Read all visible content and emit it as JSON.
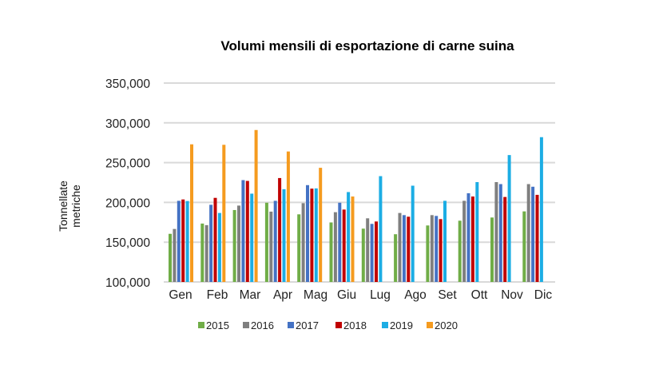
{
  "chart_data": {
    "type": "bar",
    "title": "Volumi mensili di esportazione di carne suina",
    "xlabel": "",
    "ylabel": [
      "Tonnellate",
      "metriche"
    ],
    "ylim": [
      100000,
      350000
    ],
    "yticks": [
      "100,000",
      "150,000",
      "200,000",
      "250,000",
      "300,000",
      "350,000"
    ],
    "ytick_values": [
      100000,
      150000,
      200000,
      250000,
      300000,
      350000
    ],
    "grid": true,
    "legend_position": "bottom",
    "categories": [
      "Gen",
      "Feb",
      "Mar",
      "Apr",
      "Mag",
      "Giu",
      "Lug",
      "Ago",
      "Set",
      "Ott",
      "Nov",
      "Dic"
    ],
    "series": [
      {
        "name": "2015",
        "color": "#70ad47",
        "values": [
          160500,
          173400,
          190400,
          199600,
          185000,
          174800,
          167000,
          160000,
          171000,
          177000,
          181000,
          188700
        ]
      },
      {
        "name": "2016",
        "color": "#7f7f7f",
        "values": [
          166600,
          171400,
          196000,
          188400,
          199000,
          187700,
          180000,
          186700,
          184000,
          202000,
          225500,
          223000
        ]
      },
      {
        "name": "2017",
        "color": "#4472c4",
        "values": [
          202000,
          197000,
          228000,
          202000,
          221700,
          199600,
          173000,
          184000,
          183000,
          211500,
          223000,
          219700
        ]
      },
      {
        "name": "2018",
        "color": "#c00000",
        "values": [
          203700,
          205700,
          227000,
          230600,
          217300,
          191000,
          176000,
          182000,
          179000,
          207400,
          206800,
          209500
        ]
      },
      {
        "name": "2019",
        "color": "#1cade4",
        "values": [
          201700,
          186700,
          211000,
          216600,
          217600,
          213000,
          233000,
          221000,
          202000,
          225500,
          259500,
          282000
        ]
      },
      {
        "name": "2020",
        "color": "#f59b1f",
        "values": [
          273000,
          272400,
          291000,
          264000,
          243500,
          207400,
          null,
          null,
          null,
          null,
          null,
          null
        ]
      }
    ]
  }
}
